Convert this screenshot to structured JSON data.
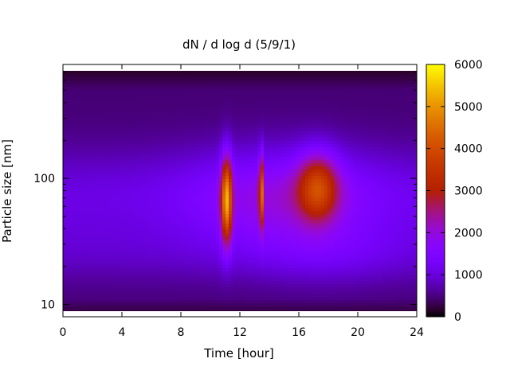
{
  "chart_data": {
    "type": "heatmap",
    "title": "dN / d log d (5/9/1)",
    "xlabel": "Time [hour]",
    "ylabel": "Particle size [nm]",
    "x_range": [
      0,
      24
    ],
    "y_range": [
      8,
      800
    ],
    "y_scale": "log",
    "x_ticks": [
      0,
      4,
      8,
      12,
      16,
      20,
      24
    ],
    "y_ticks": [
      10,
      100
    ],
    "colorbar": {
      "range": [
        0,
        6000
      ],
      "ticks": [
        0,
        1000,
        2000,
        3000,
        4000,
        5000,
        6000
      ],
      "palette": "black-purple-orange-yellow"
    },
    "features": [
      {
        "time_start": 10.7,
        "time_end": 11.5,
        "size_low": 30,
        "size_high": 150,
        "peak_value": 5200
      },
      {
        "time_start": 13.3,
        "time_end": 13.6,
        "size_low": 40,
        "size_high": 150,
        "peak_value": 4600
      },
      {
        "time_start": 15.8,
        "time_end": 18.8,
        "size_low": 45,
        "size_high": 160,
        "peak_value": 3800
      }
    ],
    "grid": false
  }
}
